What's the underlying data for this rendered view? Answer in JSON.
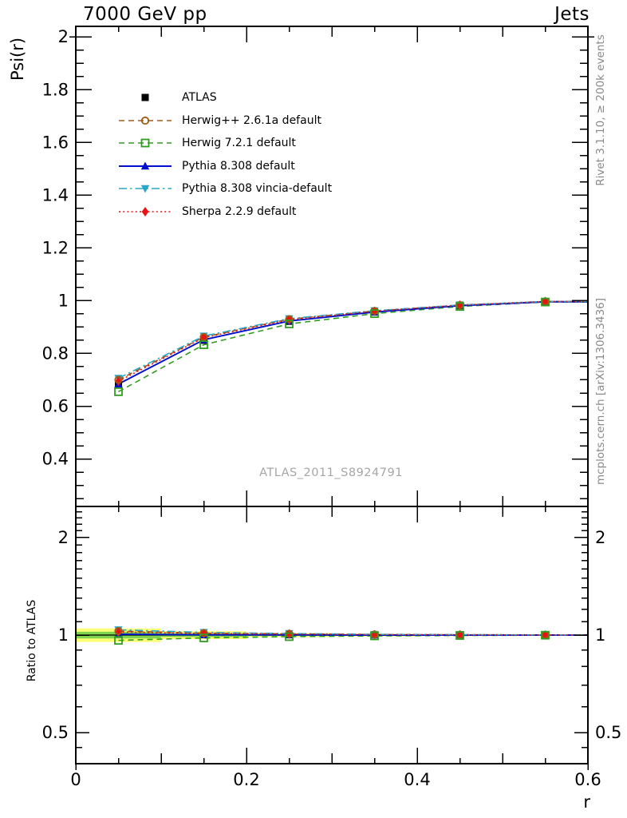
{
  "page": {
    "title_left": "7000 GeV pp",
    "title_right": "Jets",
    "watermark": "ATLAS_2011_S8924791"
  },
  "side_notes": {
    "right_top": "Rivet 3.1.10, ≥ 200k events",
    "right_bottom": "mcplots.cern.ch [arXiv:1306.3436]"
  },
  "main_panel": {
    "ylabel": "Psi(r)",
    "scale": "linear",
    "ylim": [
      0.22,
      2.04
    ],
    "yticks": [
      {
        "value": 2.0,
        "label": "2"
      },
      {
        "value": 1.8,
        "label": "1.8"
      },
      {
        "value": 1.6,
        "label": "1.6"
      },
      {
        "value": 1.4,
        "label": "1.4"
      },
      {
        "value": 1.2,
        "label": "1.2"
      },
      {
        "value": 1.0,
        "label": "1"
      },
      {
        "value": 0.8,
        "label": "0.8"
      },
      {
        "value": 0.6,
        "label": "0.6"
      },
      {
        "value": 0.4,
        "label": "0.4"
      }
    ]
  },
  "ratio_panel": {
    "ylabel": "Ratio to ATLAS",
    "scale": "log",
    "ylim": [
      0.4,
      2.49
    ],
    "yticks": [
      {
        "value": 2.0,
        "label": "2"
      },
      {
        "value": 1.0,
        "label": "1"
      },
      {
        "value": 0.5,
        "label": "0.5"
      }
    ]
  },
  "x_axis": {
    "label": "r",
    "lim": [
      0,
      0.6
    ],
    "ticks": [
      {
        "value": 0.0,
        "label": "0"
      },
      {
        "value": 0.2,
        "label": "0.2"
      },
      {
        "value": 0.4,
        "label": "0.4"
      },
      {
        "value": 0.6,
        "label": "0.6"
      }
    ]
  },
  "colors": {
    "atlas": "#000000",
    "herwigpp": "#a05a14",
    "herwig7": "#2f9e1f",
    "pythia8": "#0010cc",
    "vincia": "#28a8c8",
    "sherpa": "#e81414",
    "band_outer": "#ffff75",
    "band_inner": "#7fd44f",
    "watermark_gray": "#a6a6a6",
    "note_gray": "#8a8a8a"
  },
  "chart_data": {
    "type": "line",
    "title": "7000 GeV pp — Jets, integrated jet shape",
    "x": [
      0.05,
      0.15,
      0.25,
      0.35,
      0.45,
      0.55
    ],
    "bin_width": 0.1,
    "series": [
      {
        "id": "atlas",
        "name": "ATLAS",
        "marker": "square",
        "line": "none",
        "color": "#000000",
        "values": [
          0.68,
          0.85,
          0.922,
          0.957,
          0.981,
          0.996
        ],
        "errors": [
          0.01,
          0.007,
          0.004,
          0.003,
          0.002,
          0.002
        ]
      },
      {
        "id": "herwigpp",
        "name": "Herwig++ 2.6.1a default",
        "marker": "circle-open",
        "line": "dashed",
        "color": "#a05a14",
        "values": [
          0.7,
          0.862,
          0.93,
          0.961,
          0.983,
          0.997
        ]
      },
      {
        "id": "herwig7",
        "name": "Herwig 7.2.1 default",
        "marker": "square-open",
        "line": "dashed",
        "color": "#2f9e1f",
        "values": [
          0.655,
          0.833,
          0.912,
          0.951,
          0.978,
          0.995
        ]
      },
      {
        "id": "pythia8",
        "name": "Pythia 8.308 default",
        "marker": "triangle-up",
        "line": "solid",
        "color": "#0010cc",
        "values": [
          0.684,
          0.852,
          0.923,
          0.957,
          0.981,
          0.996
        ]
      },
      {
        "id": "vincia",
        "name": "Pythia 8.308 vincia-default",
        "marker": "triangle-down",
        "line": "dashdot",
        "color": "#28a8c8",
        "values": [
          0.706,
          0.866,
          0.932,
          0.962,
          0.984,
          0.997
        ]
      },
      {
        "id": "sherpa",
        "name": "Sherpa 2.2.9 default",
        "marker": "diamond",
        "line": "dotted",
        "color": "#e81414",
        "values": [
          0.695,
          0.86,
          0.928,
          0.96,
          0.983,
          0.997
        ]
      }
    ],
    "ratio_series": [
      {
        "id": "herwigpp",
        "values": [
          1.029,
          1.014,
          1.009,
          1.004,
          1.002,
          1.001
        ]
      },
      {
        "id": "herwig7",
        "values": [
          0.963,
          0.98,
          0.989,
          0.994,
          0.997,
          0.999
        ]
      },
      {
        "id": "pythia8",
        "values": [
          1.006,
          1.002,
          1.001,
          1.0,
          1.0,
          1.0
        ]
      },
      {
        "id": "vincia",
        "values": [
          1.038,
          1.019,
          1.011,
          1.005,
          1.003,
          1.001
        ]
      },
      {
        "id": "sherpa",
        "values": [
          1.022,
          1.012,
          1.007,
          1.003,
          1.002,
          1.001
        ]
      }
    ],
    "ratio_band": {
      "outer_halfwidth": [
        0.048,
        0.028,
        0.014,
        0.009,
        0.006,
        0.005
      ],
      "inner_halfwidth": [
        0.024,
        0.014,
        0.007,
        0.0045,
        0.003,
        0.0025
      ]
    }
  }
}
